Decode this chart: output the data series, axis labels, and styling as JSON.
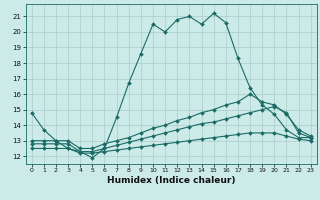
{
  "xlabel": "Humidex (Indice chaleur)",
  "xlim": [
    -0.5,
    23.5
  ],
  "ylim": [
    11.5,
    21.8
  ],
  "yticks": [
    12,
    13,
    14,
    15,
    16,
    17,
    18,
    19,
    20,
    21
  ],
  "xticks": [
    0,
    1,
    2,
    3,
    4,
    5,
    6,
    7,
    8,
    9,
    10,
    11,
    12,
    13,
    14,
    15,
    16,
    17,
    18,
    19,
    20,
    21,
    22,
    23
  ],
  "bg_color": "#cceae8",
  "grid_color": "#aaccca",
  "line_color": "#1a6b65",
  "series": [
    {
      "x": [
        0,
        1,
        2,
        3,
        4,
        5,
        6,
        7,
        8,
        9,
        10,
        11,
        12,
        13,
        14,
        15,
        16,
        17,
        18,
        19,
        20,
        21,
        22,
        23
      ],
      "y": [
        14.8,
        13.7,
        13.0,
        12.5,
        12.3,
        11.9,
        12.5,
        14.5,
        16.7,
        18.6,
        20.5,
        20.0,
        20.8,
        21.0,
        20.5,
        21.2,
        20.6,
        18.3,
        16.4,
        15.3,
        14.7,
        13.7,
        13.2,
        13.2
      ]
    },
    {
      "x": [
        0,
        1,
        2,
        3,
        4,
        5,
        6,
        7,
        8,
        9,
        10,
        11,
        12,
        13,
        14,
        15,
        16,
        17,
        18,
        19,
        20,
        21,
        22,
        23
      ],
      "y": [
        13.0,
        13.0,
        13.0,
        13.0,
        12.5,
        12.5,
        12.8,
        13.0,
        13.2,
        13.5,
        13.8,
        14.0,
        14.3,
        14.5,
        14.8,
        15.0,
        15.3,
        15.5,
        16.0,
        15.5,
        15.3,
        14.7,
        13.7,
        13.3
      ]
    },
    {
      "x": [
        0,
        1,
        2,
        3,
        4,
        5,
        6,
        7,
        8,
        9,
        10,
        11,
        12,
        13,
        14,
        15,
        16,
        17,
        18,
        19,
        20,
        21,
        22,
        23
      ],
      "y": [
        12.8,
        12.8,
        12.8,
        12.8,
        12.3,
        12.3,
        12.5,
        12.7,
        12.9,
        13.1,
        13.3,
        13.5,
        13.7,
        13.9,
        14.1,
        14.2,
        14.4,
        14.6,
        14.8,
        15.0,
        15.2,
        14.8,
        13.5,
        13.2
      ]
    },
    {
      "x": [
        0,
        1,
        2,
        3,
        4,
        5,
        6,
        7,
        8,
        9,
        10,
        11,
        12,
        13,
        14,
        15,
        16,
        17,
        18,
        19,
        20,
        21,
        22,
        23
      ],
      "y": [
        12.5,
        12.5,
        12.5,
        12.5,
        12.2,
        12.2,
        12.3,
        12.4,
        12.5,
        12.6,
        12.7,
        12.8,
        12.9,
        13.0,
        13.1,
        13.2,
        13.3,
        13.4,
        13.5,
        13.5,
        13.5,
        13.3,
        13.1,
        13.0
      ]
    }
  ]
}
